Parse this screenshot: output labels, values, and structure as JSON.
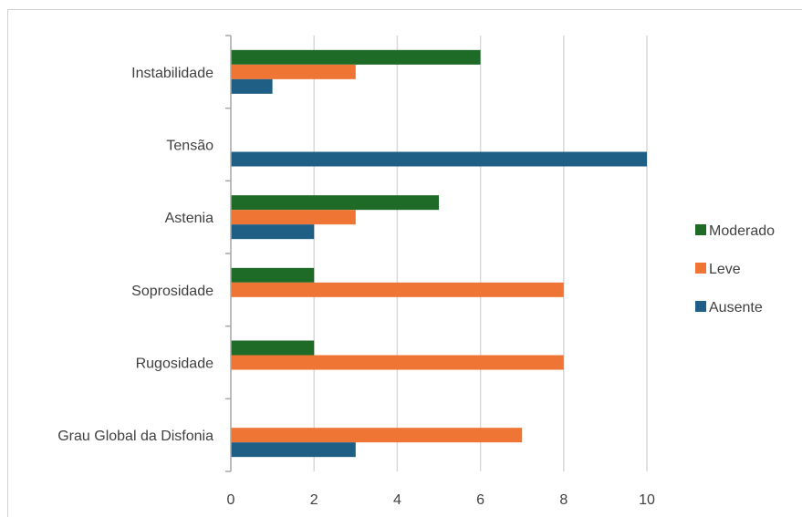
{
  "chart_data": {
    "type": "bar",
    "orientation": "horizontal",
    "categories": [
      "Grau Global da Disfonia",
      "Rugosidade",
      "Soprosidade",
      "Astenia",
      "Tensão",
      "Instabilidade"
    ],
    "series": [
      {
        "name": "Ausente",
        "color": "#1f5f86",
        "values": [
          3,
          0,
          0,
          2,
          10,
          1
        ]
      },
      {
        "name": "Leve",
        "color": "#ee7533",
        "values": [
          7,
          8,
          8,
          3,
          0,
          3
        ]
      },
      {
        "name": "Moderado",
        "color": "#1e6b27",
        "values": [
          0,
          2,
          2,
          5,
          0,
          6
        ]
      }
    ],
    "xlim": [
      0,
      10
    ],
    "x_ticks": [
      "0",
      "2",
      "4",
      "6",
      "8",
      "10"
    ],
    "x_tick_values": [
      0,
      2,
      4,
      6,
      8,
      10
    ],
    "grid": "vertical",
    "legend": {
      "position": "right",
      "order": [
        "Moderado",
        "Leve",
        "Ausente"
      ]
    },
    "title": "",
    "xlabel": "",
    "ylabel": ""
  }
}
